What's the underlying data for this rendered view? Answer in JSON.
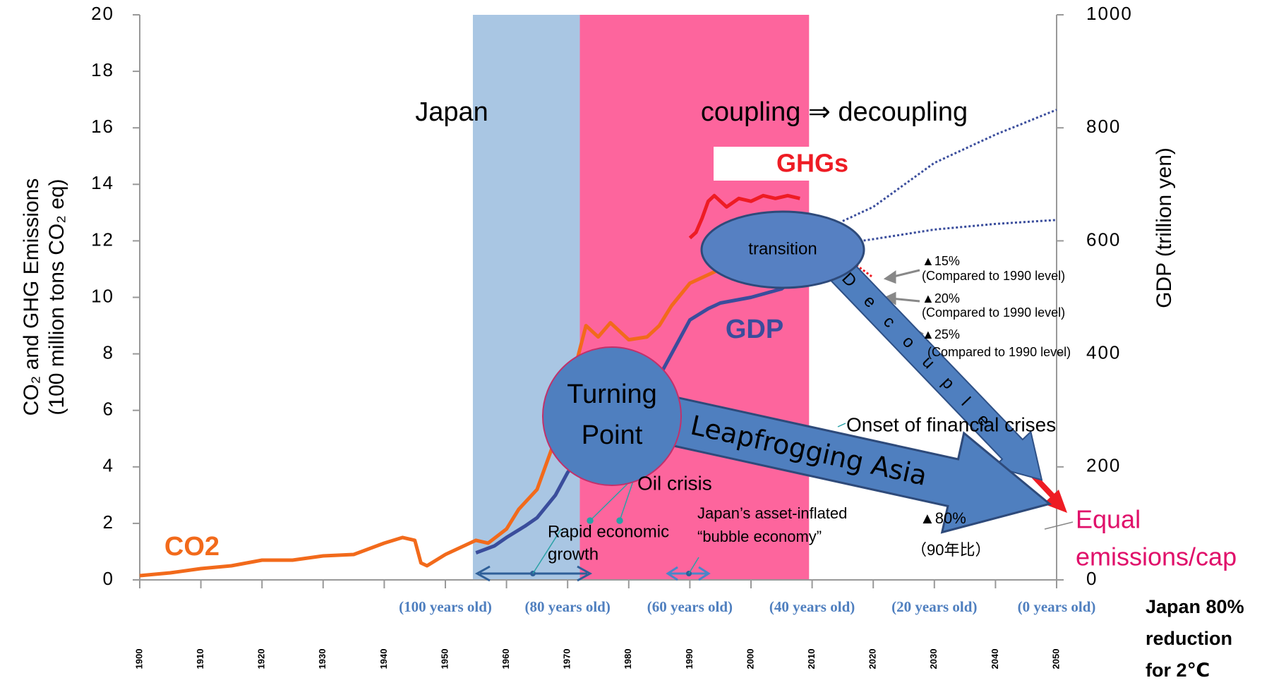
{
  "chart_data": {
    "type": "line",
    "y_label": [
      "CO₂ and GHG Emissions",
      "(100 million tons CO₂ eq)"
    ],
    "y2_label": "GDP (trillion yen)",
    "xlim": [
      1900,
      2050
    ],
    "xticks": [
      1900,
      1910,
      1920,
      1930,
      1940,
      1950,
      1960,
      1970,
      1980,
      1990,
      2000,
      2010,
      2020,
      2030,
      2040,
      2050
    ],
    "ylim": [
      0,
      20
    ],
    "yticks": [
      0,
      2,
      4,
      6,
      8,
      10,
      12,
      14,
      16,
      18,
      20
    ],
    "y2lim": [
      0,
      1000
    ],
    "y2ticks": [
      0,
      200,
      400,
      600,
      800,
      1000
    ],
    "bands": [
      {
        "x": [
          1954.5,
          1972
        ],
        "color": "#a9c6e3"
      },
      {
        "x": [
          1972,
          2009.5
        ],
        "color": "#fd659d"
      }
    ],
    "series": [
      {
        "name": "CO2",
        "color": "#f26a1b",
        "axis": "y",
        "x": [
          1900,
          1905,
          1910,
          1915,
          1920,
          1925,
          1930,
          1935,
          1940,
          1943,
          1945,
          1946,
          1947,
          1950,
          1955,
          1957,
          1960,
          1962,
          1965,
          1968,
          1970,
          1973,
          1975,
          1977,
          1980,
          1983,
          1985,
          1987,
          1990,
          1995,
          2000,
          2005,
          2008
        ],
        "values": [
          0.15,
          0.25,
          0.4,
          0.5,
          0.7,
          0.7,
          0.85,
          0.9,
          1.3,
          1.5,
          1.4,
          0.6,
          0.5,
          0.9,
          1.4,
          1.3,
          1.8,
          2.5,
          3.2,
          5.0,
          6.5,
          9.0,
          8.6,
          9.1,
          8.5,
          8.6,
          9.0,
          9.7,
          10.5,
          11.0,
          11.8,
          12.4,
          12.2
        ]
      },
      {
        "name": "GHGs",
        "color": "#ee1c24",
        "axis": "y",
        "x": [
          1990,
          1991,
          1992,
          1993,
          1994,
          1996,
          1998,
          2000,
          2002,
          2004,
          2006,
          2008
        ],
        "values": [
          12.1,
          12.3,
          12.8,
          13.4,
          13.6,
          13.2,
          13.5,
          13.4,
          13.6,
          13.5,
          13.6,
          13.5
        ]
      },
      {
        "name": "GDP",
        "color": "#3a4d9c",
        "axis": "y2",
        "x": [
          1955,
          1958,
          1960,
          1963,
          1965,
          1968,
          1970,
          1973,
          1975,
          1980,
          1985,
          1988,
          1990,
          1993,
          1995,
          2000,
          2005,
          2008
        ],
        "values": [
          48,
          60,
          75,
          95,
          110,
          150,
          190,
          235,
          250,
          300,
          360,
          420,
          460,
          480,
          490,
          500,
          515,
          540
        ]
      },
      {
        "color": "#3a4d9c",
        "axis": "y2",
        "dotted": true,
        "x": [
          2015,
          2020,
          2030,
          2040,
          2050
        ],
        "values": [
          635,
          660,
          738,
          788,
          832
        ]
      },
      {
        "color": "#3a4d9c",
        "axis": "y2",
        "dotted": true,
        "x": [
          2015,
          2020,
          2030,
          2040,
          2050
        ],
        "values": [
          595,
          603,
          620,
          630,
          637
        ]
      },
      {
        "color": "#ee1c24",
        "axis": "y",
        "dotted": true,
        "x": [
          2010,
          2015,
          2020
        ],
        "values": [
          12.3,
          11.5,
          10.7
        ]
      }
    ],
    "age_labels": [
      {
        "x": 1950,
        "label": "(100 years old)"
      },
      {
        "x": 1970,
        "label": "(80 years old)"
      },
      {
        "x": 1990,
        "label": "(60 years old)"
      },
      {
        "x": 2010,
        "label": "(40 years old)"
      },
      {
        "x": 2030,
        "label": "(20 years old)"
      },
      {
        "x": 2050,
        "label": "(0 years old)"
      }
    ],
    "annotations": {
      "japan": "Japan",
      "coupling": "coupling ⇒ decoupling",
      "transition": "transition",
      "turning_point": [
        "Turning",
        "Point"
      ],
      "leapfrogging": "Leapfrogging Asia",
      "decouple": "Decouple",
      "target15": [
        "▲15%",
        "(Compared to 1990 level)"
      ],
      "target20": [
        "▲20%",
        "(Compared to 1990 level)"
      ],
      "target25": [
        "▲25%",
        "(Compared to 1990 level)"
      ],
      "financial": "Onset of financial crises",
      "oil": "Oil crisis",
      "rapid": [
        "Rapid economic",
        "growth"
      ],
      "bubble": [
        "Japan’s asset-inflated",
        "“bubble economy”"
      ],
      "target80": [
        "▲80%",
        "（90年比）"
      ],
      "equal": [
        "Equal",
        "emissions/cap"
      ],
      "japan80": [
        "Japan 80%",
        "reduction",
        "for 2℃"
      ]
    }
  }
}
